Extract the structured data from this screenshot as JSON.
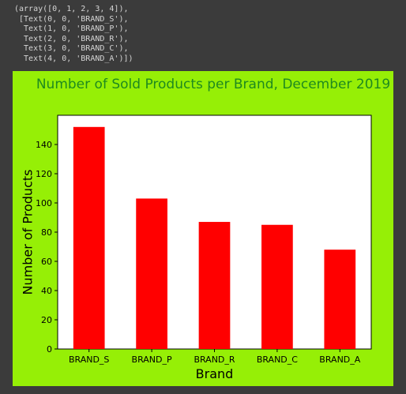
{
  "output": {
    "lines": [
      "(array([0, 1, 2, 3, 4]),",
      " [Text(0, 0, 'BRAND_S'),",
      "  Text(1, 0, 'BRAND_P'),",
      "  Text(2, 0, 'BRAND_R'),",
      "  Text(3, 0, 'BRAND_C'),",
      "  Text(4, 0, 'BRAND_A')])"
    ]
  },
  "chart_data": {
    "type": "bar",
    "title": "Number of Sold Products per Brand, December 2019",
    "xlabel": "Brand",
    "ylabel": "Number of Products",
    "categories": [
      "BRAND_S",
      "BRAND_P",
      "BRAND_R",
      "BRAND_C",
      "BRAND_A"
    ],
    "values": [
      152,
      103,
      87,
      85,
      68
    ],
    "ylim": [
      0,
      160
    ],
    "yticks": [
      0,
      20,
      40,
      60,
      80,
      100,
      120,
      140
    ],
    "grid": false,
    "legend": "none",
    "colors": {
      "bar": "#ff0000",
      "title": "#1f8a1f",
      "figure_bg": "#96ef06",
      "axes_bg": "#ffffff",
      "text": "#000000"
    }
  }
}
